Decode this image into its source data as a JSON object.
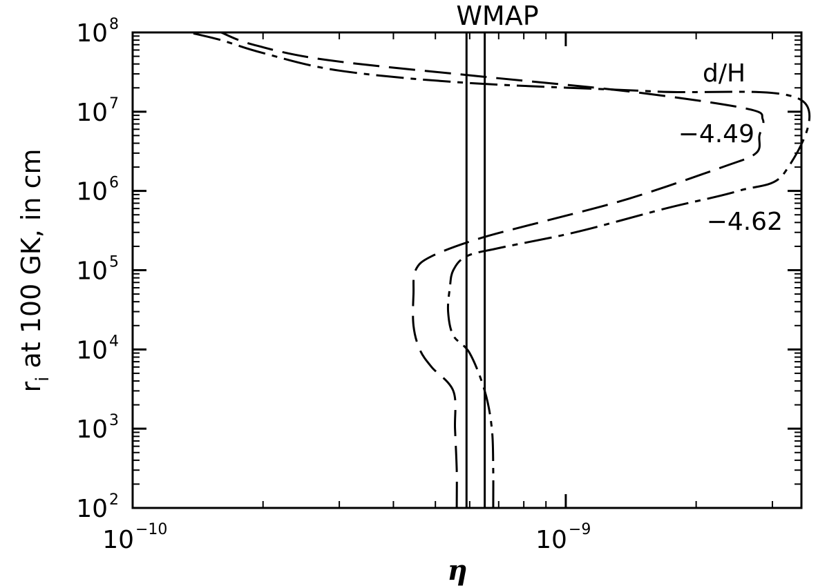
{
  "chart_data": {
    "type": "line",
    "title": "WMAP",
    "xlabel": "η",
    "ylabel": "r_i at 100 GK, in cm",
    "ylabel_parts": {
      "pre": "r",
      "sub": "i",
      "post": " at 100 GK, in cm"
    },
    "x_scale": "log",
    "y_scale": "log",
    "xlim": [
      1e-10,
      3.5e-09
    ],
    "ylim": [
      100,
      100000000
    ],
    "x_ticks": [
      {
        "base": "10",
        "exp": "−10",
        "value": 1e-10
      },
      {
        "base": "10",
        "exp": "−9",
        "value": 1e-09
      }
    ],
    "y_ticks": [
      {
        "base": "10",
        "exp": "2",
        "value": 100
      },
      {
        "base": "10",
        "exp": "3",
        "value": 1000
      },
      {
        "base": "10",
        "exp": "4",
        "value": 10000
      },
      {
        "base": "10",
        "exp": "5",
        "value": 100000
      },
      {
        "base": "10",
        "exp": "6",
        "value": 1000000
      },
      {
        "base": "10",
        "exp": "7",
        "value": 10000000
      },
      {
        "base": "10",
        "exp": "8",
        "value": 100000000
      }
    ],
    "vertical_lines": [
      5.9e-10,
      6.5e-10
    ],
    "annotations": {
      "d_over_h": "d/H",
      "upper": "−4.49",
      "lower": "−4.62"
    },
    "series": [
      {
        "style": "long-dash",
        "points": [
          [
            5.6e-10,
            100
          ],
          [
            5.6e-10,
            300
          ],
          [
            5.55e-10,
            1000
          ],
          [
            5.5e-10,
            3000
          ],
          [
            4.9e-10,
            6000
          ],
          [
            4.6e-10,
            10000
          ],
          [
            4.45e-10,
            20000
          ],
          [
            4.45e-10,
            50000
          ],
          [
            4.5e-10,
            100000
          ],
          [
            4.9e-10,
            150000
          ],
          [
            6.3e-10,
            250000
          ],
          [
            9e-10,
            420000
          ],
          [
            1.4e-09,
            800000
          ],
          [
            2.3e-09,
            2000000
          ],
          [
            2.75e-09,
            3000000
          ],
          [
            2.8e-09,
            5000000
          ],
          [
            2.85e-09,
            8000000
          ],
          [
            2.6e-09,
            11000000
          ],
          [
            1.4e-09,
            18000000
          ],
          [
            6.3e-10,
            28000000
          ],
          [
            2.8e-10,
            45000000
          ],
          [
            1.9e-10,
            70000000
          ],
          [
            1.6e-10,
            100000000
          ]
        ]
      },
      {
        "style": "dash-dot",
        "points": [
          [
            6.8e-10,
            100
          ],
          [
            6.8e-10,
            300
          ],
          [
            6.75e-10,
            1000
          ],
          [
            6.5e-10,
            3000
          ],
          [
            6e-10,
            9000
          ],
          [
            5.5e-10,
            15000
          ],
          [
            5.35e-10,
            30000
          ],
          [
            5.4e-10,
            60000
          ],
          [
            5.5e-10,
            100000
          ],
          [
            5.9e-10,
            150000
          ],
          [
            7e-10,
            190000
          ],
          [
            1.05e-09,
            300000
          ],
          [
            1.7e-09,
            600000
          ],
          [
            2.5e-09,
            1000000
          ],
          [
            3.2e-09,
            1700000
          ],
          [
            3.5e-09,
            14000000
          ],
          [
            1.6e-09,
            18000000
          ],
          [
            6e-10,
            23000000
          ],
          [
            3e-10,
            33000000
          ],
          [
            2e-10,
            55000000
          ],
          [
            1.6e-10,
            80000000
          ],
          [
            1.35e-10,
            100000000
          ]
        ]
      }
    ]
  }
}
